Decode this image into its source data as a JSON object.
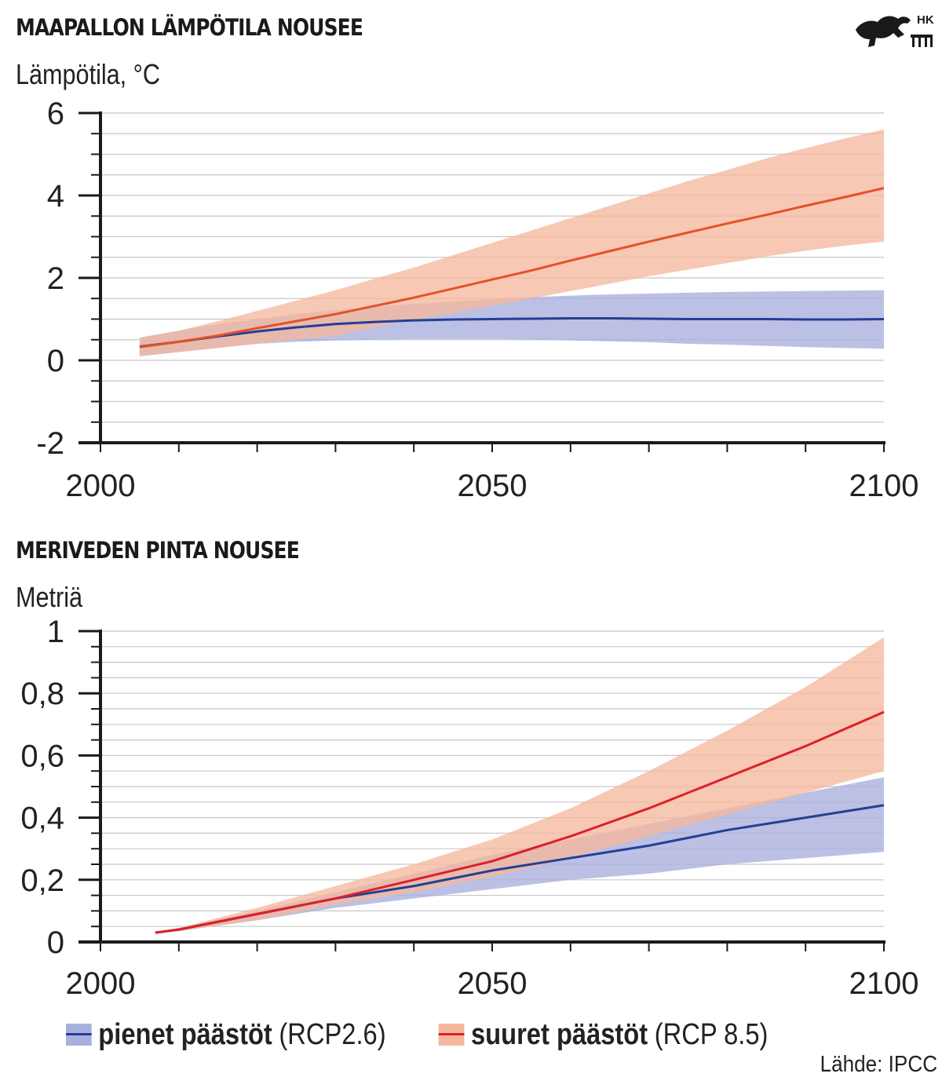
{
  "logo_text": "HK",
  "colors": {
    "low_band": "#aab0dd",
    "low_line": "#233f96",
    "high_band": "#f5b89e",
    "high_line_temp": "#e4502a",
    "high_line_sea": "#dd1f2a",
    "axis": "#1a1a1a",
    "grid": "#c8c8c8"
  },
  "legend": {
    "low_bold": "pienet päästöt",
    "low_paren": "(RCP2.6)",
    "high_bold": "suuret päästöt",
    "high_paren": "(RCP 8.5)"
  },
  "source": "Lähde: IPCC",
  "chart_data": [
    {
      "type": "area",
      "title": "MAAPALLON LÄMPÖTILA NOUSEE",
      "ylabel": "Lämpötila, °C",
      "xlabel": "",
      "x_ticks": [
        "2000",
        "2050",
        "2100"
      ],
      "y_ticks": [
        "6",
        "4",
        "2",
        "0",
        "-2"
      ],
      "ylim": [
        -2,
        6
      ],
      "xlim": [
        2000,
        2100
      ],
      "grid": true,
      "series": [
        {
          "name": "pienet päästöt (RCP2.6)",
          "x": [
            2005,
            2010,
            2015,
            2020,
            2025,
            2030,
            2035,
            2040,
            2045,
            2050,
            2055,
            2060,
            2065,
            2070,
            2075,
            2080,
            2085,
            2090,
            2095,
            2100
          ],
          "values": [
            0.33,
            0.45,
            0.58,
            0.7,
            0.8,
            0.88,
            0.93,
            0.97,
            0.99,
            1.0,
            1.01,
            1.02,
            1.02,
            1.01,
            1.0,
            1.0,
            1.0,
            0.99,
            0.99,
            1.0
          ],
          "lower": [
            0.1,
            0.2,
            0.3,
            0.4,
            0.45,
            0.48,
            0.5,
            0.52,
            0.52,
            0.52,
            0.5,
            0.48,
            0.46,
            0.44,
            0.4,
            0.38,
            0.35,
            0.32,
            0.3,
            0.28
          ],
          "upper": [
            0.55,
            0.72,
            0.88,
            1.0,
            1.12,
            1.22,
            1.3,
            1.37,
            1.43,
            1.48,
            1.53,
            1.57,
            1.6,
            1.62,
            1.64,
            1.66,
            1.67,
            1.68,
            1.69,
            1.7
          ]
        },
        {
          "name": "suuret päästöt (RCP 8.5)",
          "x": [
            2005,
            2010,
            2015,
            2020,
            2025,
            2030,
            2035,
            2040,
            2045,
            2050,
            2055,
            2060,
            2065,
            2070,
            2075,
            2080,
            2085,
            2090,
            2095,
            2100
          ],
          "values": [
            0.32,
            0.45,
            0.6,
            0.78,
            0.95,
            1.12,
            1.32,
            1.52,
            1.74,
            1.96,
            2.18,
            2.42,
            2.65,
            2.88,
            3.1,
            3.32,
            3.53,
            3.75,
            3.96,
            4.18
          ],
          "lower": [
            0.1,
            0.2,
            0.3,
            0.4,
            0.5,
            0.6,
            0.8,
            0.98,
            1.15,
            1.32,
            1.5,
            1.68,
            1.86,
            2.04,
            2.2,
            2.36,
            2.52,
            2.66,
            2.78,
            2.88
          ],
          "upper": [
            0.55,
            0.72,
            0.95,
            1.2,
            1.45,
            1.7,
            1.98,
            2.25,
            2.55,
            2.85,
            3.15,
            3.45,
            3.75,
            4.05,
            4.35,
            4.62,
            4.9,
            5.15,
            5.38,
            5.6
          ]
        }
      ]
    },
    {
      "type": "area",
      "title": "MERIVEDEN PINTA NOUSEE",
      "ylabel": "Metriä",
      "xlabel": "",
      "x_ticks": [
        "2000",
        "2050",
        "2100"
      ],
      "y_ticks": [
        "1",
        "0,8",
        "0,6",
        "0,4",
        "0,2",
        "0"
      ],
      "ylim": [
        0,
        1
      ],
      "xlim": [
        2000,
        2100
      ],
      "grid": true,
      "series": [
        {
          "name": "pienet päästöt (RCP2.6)",
          "x": [
            2007,
            2010,
            2020,
            2030,
            2040,
            2050,
            2060,
            2070,
            2080,
            2090,
            2100
          ],
          "values": [
            0.03,
            0.04,
            0.09,
            0.14,
            0.18,
            0.23,
            0.27,
            0.31,
            0.36,
            0.4,
            0.44
          ],
          "lower": [
            0.03,
            0.035,
            0.07,
            0.11,
            0.14,
            0.17,
            0.2,
            0.22,
            0.25,
            0.27,
            0.29
          ],
          "upper": [
            0.03,
            0.045,
            0.1,
            0.16,
            0.22,
            0.28,
            0.33,
            0.38,
            0.43,
            0.48,
            0.53
          ]
        },
        {
          "name": "suuret päästöt (RCP 8.5)",
          "x": [
            2007,
            2010,
            2020,
            2030,
            2040,
            2050,
            2060,
            2070,
            2080,
            2090,
            2100
          ],
          "values": [
            0.03,
            0.04,
            0.09,
            0.14,
            0.2,
            0.26,
            0.34,
            0.43,
            0.53,
            0.63,
            0.74
          ],
          "lower": [
            0.03,
            0.035,
            0.07,
            0.12,
            0.16,
            0.21,
            0.27,
            0.34,
            0.41,
            0.48,
            0.55
          ],
          "upper": [
            0.03,
            0.045,
            0.11,
            0.18,
            0.25,
            0.33,
            0.43,
            0.55,
            0.68,
            0.82,
            0.98
          ]
        }
      ]
    }
  ]
}
